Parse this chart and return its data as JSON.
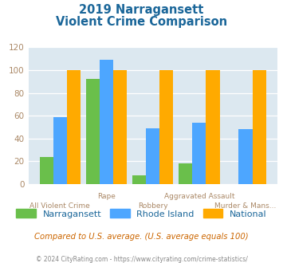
{
  "title_line1": "2019 Narragansett",
  "title_line2": "Violent Crime Comparison",
  "narragansett": [
    24,
    92,
    8,
    18,
    0
  ],
  "rhode_island": [
    59,
    109,
    49,
    54,
    48
  ],
  "national": [
    100,
    100,
    100,
    100,
    100
  ],
  "bar_colors": {
    "narragansett": "#6abf4b",
    "rhode_island": "#4da6ff",
    "national": "#ffaa00"
  },
  "ylim": [
    0,
    120
  ],
  "yticks": [
    0,
    20,
    40,
    60,
    80,
    100,
    120
  ],
  "background_color": "#dce8f0",
  "title_color": "#1a6699",
  "tick_label_color": "#aa8866",
  "grid_color": "#ffffff",
  "legend_labels": [
    "Narragansett",
    "Rhode Island",
    "National"
  ],
  "legend_label_color": "#1a6699",
  "note_text": "Compared to U.S. average. (U.S. average equals 100)",
  "footer_text": "© 2024 CityRating.com - https://www.cityrating.com/crime-statistics/",
  "note_color": "#cc6600",
  "footer_color": "#888888",
  "xtick_upper": [
    "",
    "Rape",
    "",
    "Aggravated Assault",
    ""
  ],
  "xtick_lower": [
    "All Violent Crime",
    "",
    "Robbery",
    "",
    "Murder & Mans..."
  ]
}
